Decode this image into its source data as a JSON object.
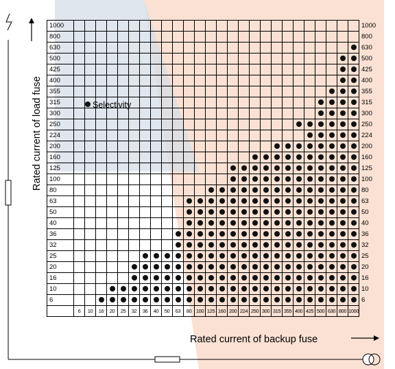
{
  "axes": {
    "y_label": "Rated current of load fuse",
    "x_label": "Rated current of backup fuse"
  },
  "legend": {
    "label": "Selectivity"
  },
  "rows": [
    "1000",
    "800",
    "630",
    "500",
    "425",
    "400",
    "355",
    "315",
    "300",
    "250",
    "224",
    "200",
    "160",
    "125",
    "100",
    "80",
    "63",
    "50",
    "40",
    "36",
    "32",
    "25",
    "20",
    "16",
    "10",
    "6"
  ],
  "columns": [
    "6",
    "10",
    "16",
    "20",
    "25",
    "32",
    "36",
    "40",
    "50",
    "63",
    "80",
    "100",
    "125",
    "160",
    "200",
    "224",
    "250",
    "300",
    "315",
    "355",
    "400",
    "425",
    "500",
    "630",
    "800",
    "1000"
  ],
  "selectivity_from_column": {
    "1000": null,
    "800": null,
    "630": "1000",
    "500": "800",
    "425": "800",
    "400": "800",
    "355": "630",
    "315": "500",
    "300": "500",
    "250": "400",
    "224": "425",
    "200": "315",
    "160": "250",
    "125": "200",
    "100": "200",
    "80": "125",
    "63": "80",
    "50": "80",
    "40": "80",
    "36": "63",
    "32": "63",
    "25": "36",
    "20": "32",
    "16": "32",
    "10": "20",
    "6": "16"
  },
  "colors": {
    "dot": "#111111",
    "watermark_red": "#f6c9b0",
    "watermark_blue": "#c9d3de"
  }
}
